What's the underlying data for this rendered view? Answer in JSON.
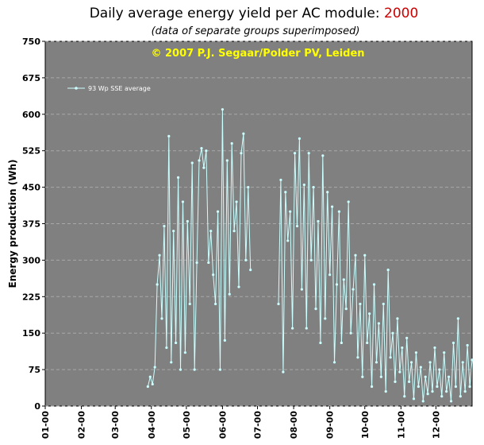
{
  "chart_data": {
    "type": "line",
    "title": "Daily average energy yield per AC module: ",
    "title_year": "2000",
    "subtitle": "(data of separate groups superimposed)",
    "annotation": "© 2007 P.J. Segaar/Polder PV, Leiden",
    "ylabel": "Energy production (Wh)",
    "xlim": [
      0,
      366
    ],
    "xticks": [
      {
        "value": 0,
        "label": "01-00"
      },
      {
        "value": 31,
        "label": "02-00"
      },
      {
        "value": 60,
        "label": "03-00"
      },
      {
        "value": 91,
        "label": "04-00"
      },
      {
        "value": 121,
        "label": "05-00"
      },
      {
        "value": 152,
        "label": "06-00"
      },
      {
        "value": 182,
        "label": "07-00"
      },
      {
        "value": 213,
        "label": "08-00"
      },
      {
        "value": 244,
        "label": "09-00"
      },
      {
        "value": 274,
        "label": "10-00"
      },
      {
        "value": 305,
        "label": "11-00"
      },
      {
        "value": 335,
        "label": "12-00"
      }
    ],
    "ylim": [
      0,
      750
    ],
    "yticks": [
      0,
      75,
      150,
      225,
      300,
      375,
      450,
      525,
      600,
      675,
      750
    ],
    "grid": true,
    "legend": "top-left",
    "x": [
      88,
      90,
      92,
      94,
      96,
      98,
      100,
      102,
      104,
      106,
      108,
      110,
      112,
      114,
      116,
      118,
      120,
      122,
      124,
      126,
      128,
      130,
      132,
      134,
      136,
      138,
      140,
      142,
      144,
      146,
      148,
      150,
      152,
      154,
      156,
      158,
      160,
      162,
      164,
      166,
      168,
      170,
      172,
      174,
      176,
      178,
      200,
      202,
      204,
      206,
      208,
      210,
      212,
      214,
      216,
      218,
      220,
      222,
      224,
      226,
      228,
      230,
      232,
      234,
      236,
      238,
      240,
      242,
      244,
      246,
      248,
      250,
      252,
      254,
      256,
      258,
      260,
      262,
      264,
      266,
      268,
      270,
      272,
      274,
      276,
      278,
      280,
      282,
      284,
      286,
      288,
      290,
      292,
      294,
      296,
      298,
      300,
      302,
      304,
      306,
      308,
      310,
      312,
      314,
      316,
      318,
      320,
      322,
      324,
      326,
      328,
      330,
      332,
      334,
      336,
      338,
      340,
      342,
      344,
      346,
      348,
      350,
      352,
      354,
      356,
      358,
      360,
      362,
      364,
      366
    ],
    "series": [
      {
        "name": "93 Wp SSE average",
        "color": "#ccffff",
        "values": [
          40,
          60,
          45,
          80,
          250,
          310,
          180,
          370,
          120,
          555,
          90,
          360,
          130,
          470,
          75,
          420,
          110,
          380,
          210,
          500,
          75,
          295,
          505,
          530,
          490,
          525,
          295,
          360,
          270,
          210,
          400,
          75,
          610,
          135,
          505,
          230,
          540,
          360,
          420,
          245,
          520,
          560,
          300,
          450,
          280,
          null,
          210,
          465,
          70,
          440,
          340,
          400,
          160,
          520,
          370,
          550,
          240,
          455,
          160,
          520,
          300,
          450,
          200,
          380,
          130,
          515,
          180,
          440,
          270,
          410,
          90,
          250,
          400,
          130,
          260,
          200,
          420,
          150,
          240,
          310,
          100,
          210,
          60,
          310,
          130,
          190,
          40,
          250,
          90,
          170,
          60,
          210,
          30,
          280,
          100,
          150,
          50,
          180,
          70,
          120,
          20,
          140,
          50,
          90,
          15,
          110,
          40,
          80,
          10,
          60,
          25,
          90,
          30,
          120,
          40,
          75,
          20,
          110,
          30,
          60,
          10,
          130,
          40,
          180,
          20,
          90,
          30,
          125,
          40,
          95
        ]
      }
    ]
  }
}
